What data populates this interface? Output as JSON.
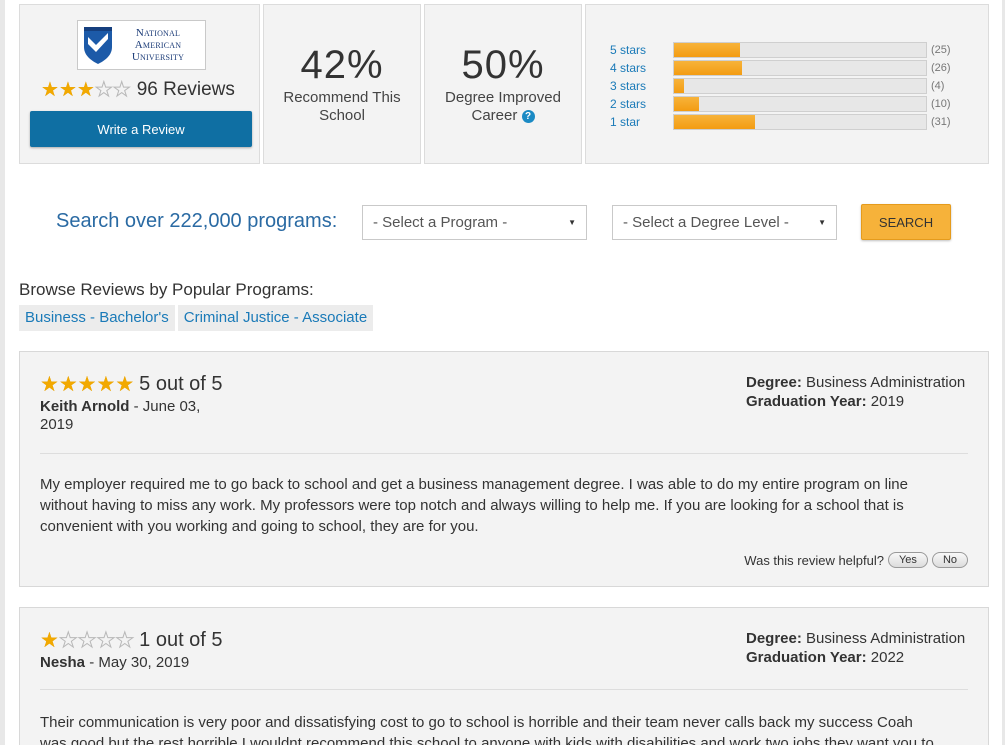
{
  "school": {
    "logo_text_line1": "National American",
    "logo_text_line2": "University",
    "rating_stars": 3,
    "reviews_label": "96 Reviews",
    "write_review_label": "Write a Review"
  },
  "stats": {
    "recommend_pct": "42%",
    "recommend_label_line1": "Recommend This",
    "recommend_label_line2": "School",
    "degree_pct": "50%",
    "degree_label_line1": "Degree Improved",
    "degree_label_line2": "Career",
    "help_icon": "question-circle-icon"
  },
  "distribution": [
    {
      "label": "5 stars",
      "count": "(25)",
      "fraction": 0.26
    },
    {
      "label": "4 stars",
      "count": "(26)",
      "fraction": 0.27
    },
    {
      "label": "3 stars",
      "count": "(4)",
      "fraction": 0.04
    },
    {
      "label": "2 stars",
      "count": "(10)",
      "fraction": 0.1
    },
    {
      "label": "1 star",
      "count": "(31)",
      "fraction": 0.32
    }
  ],
  "search": {
    "title": "Search over 222,000 programs:",
    "program_select": "- Select a Program -",
    "degree_select": "- Select a Degree Level -",
    "button_label": "SEARCH"
  },
  "browse": {
    "title": "Browse Reviews by Popular Programs:",
    "tags": [
      "Business - Bachelor's",
      "Criminal Justice - Associate"
    ]
  },
  "reviews": [
    {
      "stars": 5,
      "rating_text": "5 out of 5",
      "author": "Keith Arnold",
      "date": " - June 03, 2019",
      "degree_label": "Degree:",
      "degree": " Business Administration",
      "grad_label": "Graduation Year:",
      "grad_year": " 2019",
      "body": "My employer required me to go back to school and get a business management degree. I was able to do my entire program on line without having to miss any work. My professors were top notch and always willing to help me. If you are looking for a school that is convenient with you working and going to school, they are for you.",
      "helpful_label": "Was this review helpful?",
      "yes_label": "Yes",
      "no_label": "No"
    },
    {
      "stars": 1,
      "rating_text": "1 out of 5",
      "author": "Nesha",
      "date": " - May 30, 2019",
      "degree_label": "Degree:",
      "degree": " Business Administration",
      "grad_label": "Graduation Year:",
      "grad_year": " 2022",
      "body": "Their communication is very poor and dissatisfying cost to go to school is horrible and their team never calls back my success Coah was good but the rest horrible I wouldnt recommend this school to anyone with kids with disabilities and work two jobs they want you to log in"
    }
  ],
  "colors": {
    "accent_blue": "#0f6fa3",
    "link_blue": "#1a7ab8",
    "star_gold": "#f2a900",
    "bar_orange": "#f39c12",
    "search_orange": "#f6b23a"
  }
}
